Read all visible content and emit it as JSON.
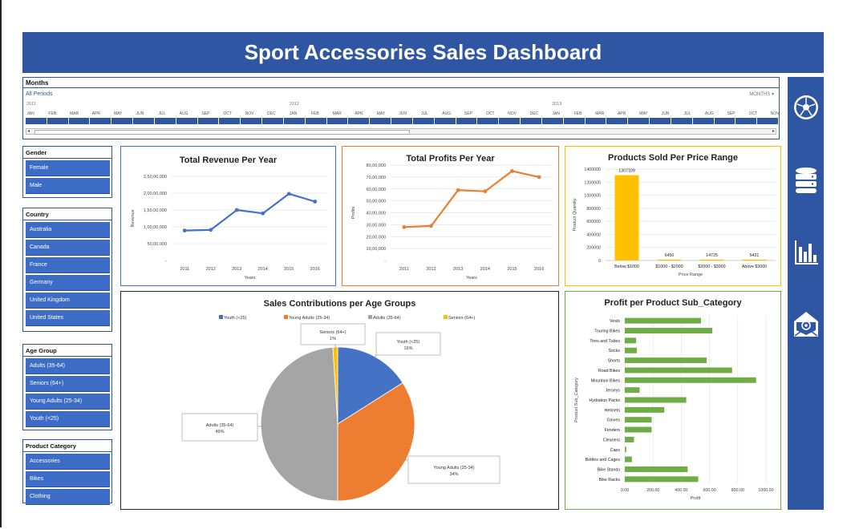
{
  "title": "Sport Accessories Sales Dashboard",
  "timeline": {
    "title": "Months",
    "all_periods": "All Periods",
    "unit": "MONTHS",
    "years": [
      "2011",
      "2012",
      "2013"
    ],
    "months": [
      "JAN",
      "FEB",
      "MAR",
      "APR",
      "MAY",
      "JUN",
      "JUL",
      "AUG",
      "SEP",
      "OCT",
      "NOV",
      "DEC",
      "JAN",
      "FEB",
      "MAR",
      "APR",
      "MAY",
      "JUN",
      "JUL",
      "AUG",
      "SEP",
      "OCT",
      "NOV",
      "DEC",
      "JAN",
      "FEB",
      "MAR",
      "APR",
      "MAY",
      "JUN",
      "JUL",
      "AUG",
      "SEP",
      "OCT",
      "NOV"
    ]
  },
  "slicers": {
    "gender": {
      "title": "Gender",
      "items": [
        "Female",
        "Male"
      ]
    },
    "country": {
      "title": "Country",
      "items": [
        "Australia",
        "Canada",
        "France",
        "Germany",
        "United Kingdom",
        "United States"
      ]
    },
    "age_group": {
      "title": "Age Group",
      "items": [
        "Adults (35-64)",
        "Seniors (64+)",
        "Young Adults (25-34)",
        "Youth (<25)"
      ]
    },
    "product_category": {
      "title": "Product Category",
      "items": [
        "Accessories",
        "Bikes",
        "Clothing"
      ]
    }
  },
  "right_icons": [
    "soccer-ball-icon",
    "database-icon",
    "bar-chart-icon",
    "email-icon"
  ],
  "colors": {
    "accent": "#2f56a3",
    "slicer": "#3d6cc7",
    "revenue": "#4472c4",
    "profit": "#ed7d31",
    "products": "#ffc000",
    "subcat": "#70ad47"
  },
  "chart_data": [
    {
      "type": "line",
      "title": "Total Revenue Per Year",
      "xlabel": "Years",
      "ylabel": "Revenue",
      "x": [
        "2011",
        "2012",
        "2013",
        "2014",
        "2015",
        "2016"
      ],
      "series": [
        {
          "values": [
            8900000,
            9100000,
            15000000,
            14000000,
            19800000,
            17500000
          ]
        }
      ],
      "ylim": [
        0,
        25000000
      ],
      "yticks": [
        "-",
        "50,00,000",
        "1,00,00,000",
        "1,50,00,000",
        "2,00,00,000",
        "2,50,00,000"
      ]
    },
    {
      "type": "line",
      "title": "Total Profits Per Year",
      "xlabel": "Years",
      "ylabel": "Profits",
      "x": [
        "2011",
        "2012",
        "2013",
        "2014",
        "2015",
        "2016"
      ],
      "series": [
        {
          "values": [
            2800000,
            2900000,
            5900000,
            5800000,
            7500000,
            7000000
          ]
        }
      ],
      "ylim": [
        0,
        8000000
      ],
      "yticks": [
        "-",
        "10,00,000",
        "20,00,000",
        "30,00,000",
        "40,00,000",
        "50,00,000",
        "60,00,000",
        "70,00,000",
        "80,00,000"
      ]
    },
    {
      "type": "bar",
      "title": "Products Sold Per Price Range",
      "xlabel": "Price Range",
      "ylabel": "Product Quantity",
      "categories": [
        "Below $1000",
        "$1000 - $2000",
        "$2000 - $3000",
        "Above $3000"
      ],
      "values": [
        1307109,
        6450,
        14725,
        5421
      ],
      "ylim": [
        0,
        1400000
      ],
      "yticks": [
        "0",
        "200000",
        "400000",
        "600000",
        "800000",
        "1000000",
        "1200000",
        "1400000"
      ]
    },
    {
      "type": "pie",
      "title": "Sales Contributions per Age Groups",
      "legend": [
        "Youth (<25)",
        "Young Adults (25-34)",
        "Adults (35-64)",
        "Seniors (64+)"
      ],
      "values": [
        16,
        34,
        49,
        1
      ],
      "labels": [
        {
          "name": "Youth (<25)",
          "pct": "16%"
        },
        {
          "name": "Young Adults (25-34)",
          "pct": "34%"
        },
        {
          "name": "Adults (35-64)",
          "pct": "49%"
        },
        {
          "name": "Seniors (64+)",
          "pct": "1%"
        }
      ]
    },
    {
      "type": "bar",
      "orientation": "horizontal",
      "title": "Profit per Product Sub_Category",
      "xlabel": "Profit",
      "ylabel": "Product Sub_Category",
      "categories": [
        "Vests",
        "Touring Bikes",
        "Tires and Tubes",
        "Socks",
        "Shorts",
        "Road Bikes",
        "Mountain Bikes",
        "Jerseys",
        "Hydration Packs",
        "Helmets",
        "Gloves",
        "Fenders",
        "Cleaners",
        "Caps",
        "Bottles and Cages",
        "Bike Stands",
        "Bike Racks"
      ],
      "values": [
        540,
        620,
        80,
        85,
        580,
        760,
        930,
        105,
        435,
        280,
        190,
        190,
        65,
        10,
        50,
        445,
        520
      ],
      "xlim": [
        0,
        1000
      ],
      "xticks": [
        "0.00",
        "200.00",
        "400.00",
        "600.00",
        "800.00",
        "1000.00"
      ]
    }
  ]
}
